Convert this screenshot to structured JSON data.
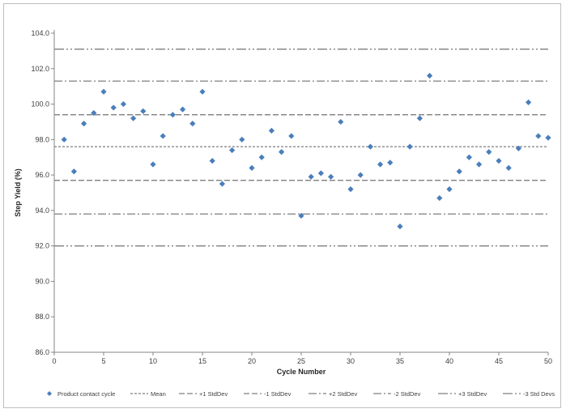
{
  "chart_data": {
    "type": "scatter",
    "xlabel": "Cycle Number",
    "ylabel": "Step Yield (%)",
    "xlim": [
      0,
      50
    ],
    "ylim": [
      86.0,
      104.0
    ],
    "x_ticks": [
      0,
      5,
      10,
      15,
      20,
      25,
      30,
      35,
      40,
      45,
      50
    ],
    "y_ticks": [
      86.0,
      88.0,
      90.0,
      92.0,
      94.0,
      96.0,
      98.0,
      100.0,
      102.0,
      104.0
    ],
    "y_tick_labels": [
      "86.0",
      "88.0",
      "90.0",
      "92.0",
      "94.0",
      "96.0",
      "98.0",
      "100.0",
      "102.0",
      "104.0"
    ],
    "grid": false,
    "legend_position": "bottom",
    "marker_color": "#4a7ebb",
    "line_color": "#7f7f7f",
    "series": [
      {
        "name": "Product contact cycle",
        "x": [
          1,
          2,
          3,
          4,
          5,
          6,
          7,
          8,
          9,
          10,
          11,
          12,
          13,
          14,
          15,
          16,
          17,
          18,
          19,
          20,
          21,
          22,
          23,
          24,
          25,
          26,
          27,
          28,
          29,
          30,
          31,
          32,
          33,
          34,
          35,
          36,
          37,
          38,
          39,
          40,
          41,
          42,
          43,
          44,
          45,
          46,
          47,
          48,
          49,
          50
        ],
        "y": [
          98.0,
          96.2,
          98.9,
          99.5,
          100.7,
          99.8,
          100.0,
          99.2,
          99.6,
          96.6,
          98.2,
          99.4,
          99.7,
          98.9,
          100.7,
          96.8,
          95.5,
          97.4,
          98.0,
          96.4,
          97.0,
          98.5,
          97.3,
          98.2,
          93.7,
          95.9,
          96.1,
          95.9,
          99.0,
          95.2,
          96.0,
          97.6,
          96.6,
          96.7,
          93.1,
          97.6,
          99.2,
          101.6,
          94.7,
          95.2,
          96.2,
          97.0,
          96.6,
          97.3,
          96.8,
          96.4,
          97.5,
          100.1,
          98.2,
          98.1
        ]
      }
    ],
    "reference_lines": [
      {
        "name": "Mean",
        "y": 97.6,
        "dash": "3,2"
      },
      {
        "name": "+1 StdDev",
        "y": 99.4,
        "dash": "7,3"
      },
      {
        "name": "-1 StdDev",
        "y": 95.7,
        "dash": "7,3"
      },
      {
        "name": "+2 StdDev",
        "y": 101.3,
        "dash": "10,3,2,3"
      },
      {
        "name": "-2 StdDev",
        "y": 93.8,
        "dash": "10,3,2,3"
      },
      {
        "name": "+3 StdDev",
        "y": 103.1,
        "dash": "12,3,2,3,2,3"
      },
      {
        "name": "-3 Std Devs",
        "y": 92.0,
        "dash": "12,3,2,3,2,3"
      }
    ]
  }
}
